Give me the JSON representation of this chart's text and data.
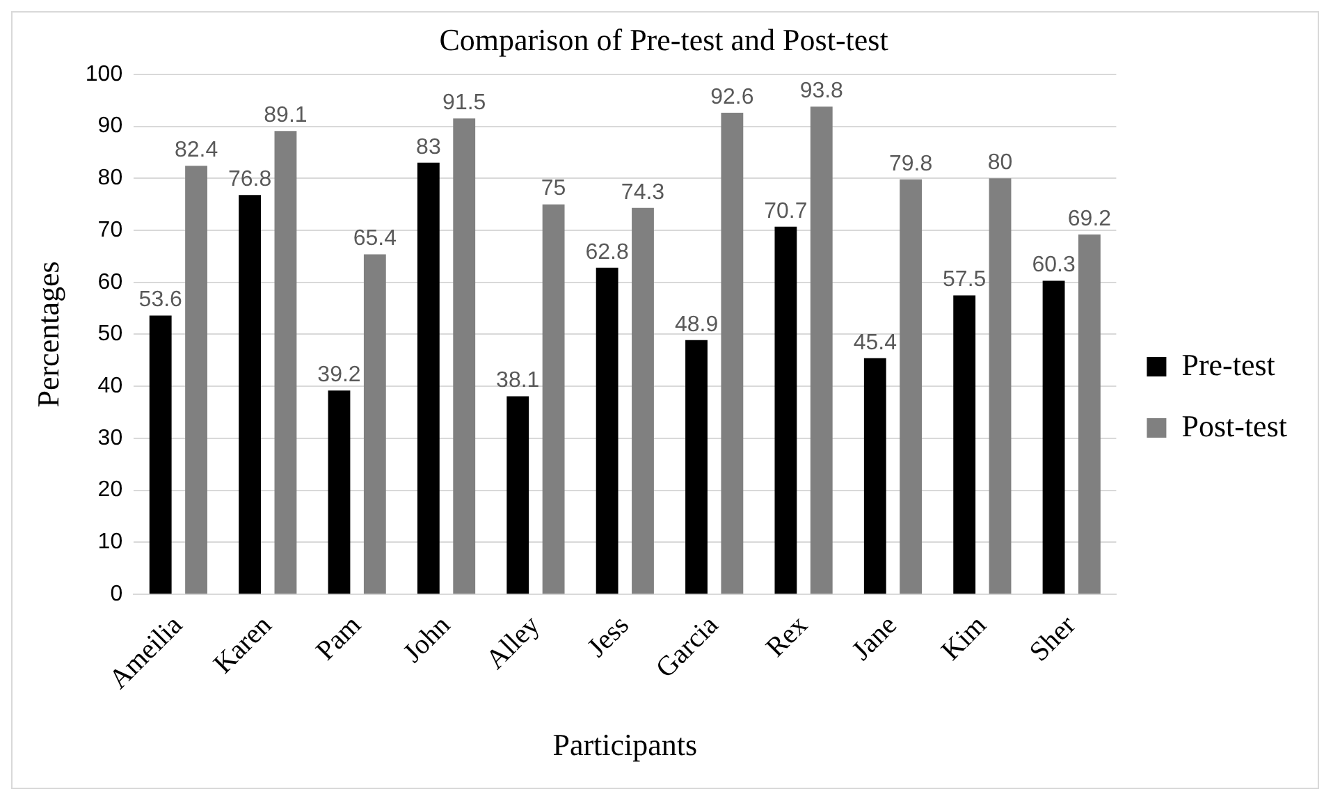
{
  "chart_data": {
    "type": "bar",
    "title": "Comparison of Pre-test and Post-test",
    "xlabel": "Participants",
    "ylabel": "Percentages",
    "categories": [
      "Ameilia",
      "Karen",
      "Pam",
      "John",
      "Alley",
      "Jess",
      "Garcia",
      "Rex",
      "Jane",
      "Kim",
      "Sher"
    ],
    "series": [
      {
        "name": "Pre-test",
        "color": "#000000",
        "values": [
          53.6,
          76.8,
          39.2,
          83,
          38.1,
          62.8,
          48.9,
          70.7,
          45.4,
          57.5,
          60.3
        ]
      },
      {
        "name": "Post-test",
        "color": "#808080",
        "values": [
          82.4,
          89.1,
          65.4,
          91.5,
          75,
          74.3,
          92.6,
          93.8,
          79.8,
          80,
          69.2
        ]
      }
    ],
    "ylim": [
      0,
      100
    ],
    "yticks": [
      0,
      10,
      20,
      30,
      40,
      50,
      60,
      70,
      80,
      90,
      100
    ],
    "grid": "y",
    "legend": "right",
    "data_labels": true
  }
}
